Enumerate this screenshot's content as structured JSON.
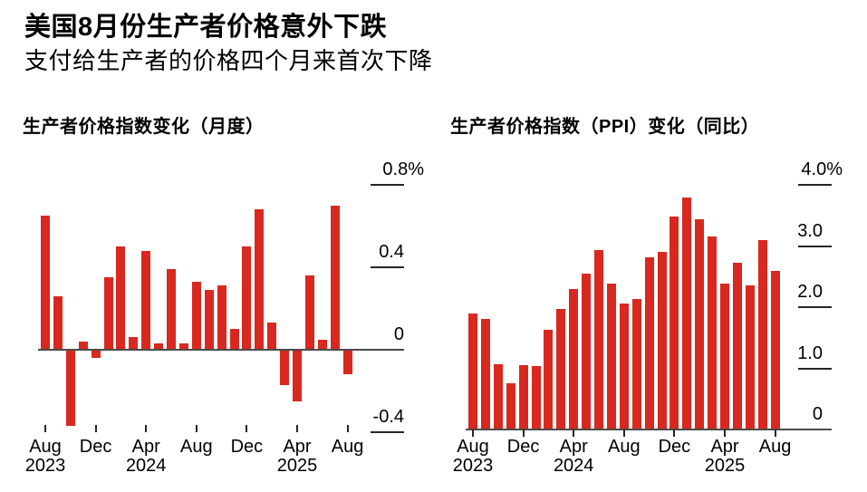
{
  "header": {
    "title": "美国8月份生产者价格意外下跌",
    "subtitle": "支付给生产者的价格四个月来首次下降"
  },
  "colors": {
    "bar_red": "#d8281f",
    "axis_line": "#4a4a4a",
    "tick_line": "#262626",
    "text": "#000000",
    "background": "#ffffff"
  },
  "chart_data": [
    {
      "type": "bar",
      "title": "生产者价格指数变化（月度）",
      "unit": "%",
      "legend": [],
      "grid": "right-side tick dashes only",
      "categories": [
        "Aug 2023",
        "Sep 2023",
        "Oct 2023",
        "Nov 2023",
        "Dec 2023",
        "Jan 2024",
        "Feb 2024",
        "Mar 2024",
        "Apr 2024",
        "May 2024",
        "Jun 2024",
        "Jul 2024",
        "Aug 2024",
        "Sep 2024",
        "Oct 2024",
        "Nov 2024",
        "Dec 2024",
        "Jan 2025",
        "Feb 2025",
        "Mar 2025",
        "Apr 2025",
        "May 2025",
        "Jun 2025",
        "Jul 2025",
        "Aug 2025"
      ],
      "values": [
        0.65,
        0.26,
        -0.37,
        0.04,
        -0.04,
        0.35,
        0.5,
        0.06,
        0.48,
        0.03,
        0.39,
        0.03,
        0.33,
        0.29,
        0.31,
        0.1,
        0.5,
        0.68,
        0.13,
        -0.17,
        -0.25,
        0.36,
        0.05,
        0.7,
        -0.12
      ],
      "ylim": [
        -0.4,
        0.8
      ],
      "yticks": [
        {
          "value": 0.8,
          "label": "0.8%"
        },
        {
          "value": 0.4,
          "label": "0.4"
        },
        {
          "value": 0,
          "label": "0"
        },
        {
          "value": -0.4,
          "label": "-0.4"
        }
      ],
      "xticks": [
        {
          "index": 0,
          "lines": [
            "Aug",
            "2023"
          ]
        },
        {
          "index": 4,
          "lines": [
            "Dec"
          ]
        },
        {
          "index": 8,
          "lines": [
            "Apr",
            "2024"
          ]
        },
        {
          "index": 12,
          "lines": [
            "Aug"
          ]
        },
        {
          "index": 16,
          "lines": [
            "Dec"
          ]
        },
        {
          "index": 20,
          "lines": [
            "Apr",
            "2025"
          ]
        },
        {
          "index": 24,
          "lines": [
            "Aug"
          ]
        }
      ]
    },
    {
      "type": "bar",
      "title": "生产者价格指数（PPI）变化（同比）",
      "unit": "%",
      "legend": [],
      "grid": "right-side tick dashes only",
      "categories": [
        "Aug 2023",
        "Sep 2023",
        "Oct 2023",
        "Nov 2023",
        "Dec 2023",
        "Jan 2024",
        "Feb 2024",
        "Mar 2024",
        "Apr 2024",
        "May 2024",
        "Jun 2024",
        "Jul 2024",
        "Aug 2024",
        "Sep 2024",
        "Oct 2024",
        "Nov 2024",
        "Dec 2024",
        "Jan 2025",
        "Feb 2025",
        "Mar 2025",
        "Apr 2025",
        "May 2025",
        "Jun 2025",
        "Jul 2025",
        "Aug 2025"
      ],
      "values": [
        1.9,
        1.81,
        1.07,
        0.76,
        1.05,
        1.04,
        1.63,
        1.97,
        2.3,
        2.55,
        2.93,
        2.39,
        2.06,
        2.14,
        2.82,
        2.9,
        3.48,
        3.8,
        3.43,
        3.15,
        2.39,
        2.73,
        2.35,
        3.09,
        2.6
      ],
      "ylim": [
        0,
        4.0
      ],
      "yticks": [
        {
          "value": 4.0,
          "label": "4.0%"
        },
        {
          "value": 3.0,
          "label": "3.0"
        },
        {
          "value": 2.0,
          "label": "2.0"
        },
        {
          "value": 1.0,
          "label": "1.0"
        },
        {
          "value": 0,
          "label": "0"
        }
      ],
      "xticks": [
        {
          "index": 0,
          "lines": [
            "Aug",
            "2023"
          ]
        },
        {
          "index": 4,
          "lines": [
            "Dec"
          ]
        },
        {
          "index": 8,
          "lines": [
            "Apr",
            "2024"
          ]
        },
        {
          "index": 12,
          "lines": [
            "Aug"
          ]
        },
        {
          "index": 16,
          "lines": [
            "Dec"
          ]
        },
        {
          "index": 20,
          "lines": [
            "Apr",
            "2025"
          ]
        },
        {
          "index": 24,
          "lines": [
            "Aug"
          ]
        }
      ]
    }
  ]
}
